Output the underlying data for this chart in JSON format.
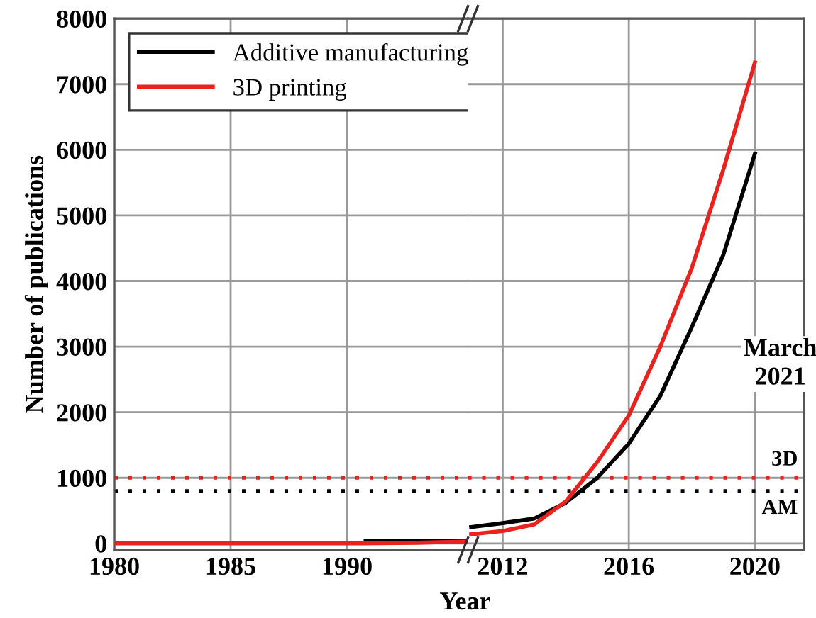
{
  "chart_data": [
    {
      "type": "line",
      "ylabel": "Number of publications",
      "xlabel": "Year",
      "xlim": [
        1980,
        1995.2
      ],
      "xticks": [
        1980,
        1985,
        1990
      ],
      "ylim": [
        -100,
        8000
      ],
      "yticks": [
        0,
        1000,
        2000,
        3000,
        4000,
        5000,
        6000,
        7000,
        8000
      ],
      "grid": true,
      "legend": "top left",
      "line_style": "solid",
      "marker": "none",
      "series": [
        {
          "name": "Additive manufacturing",
          "color": "#000000",
          "x": [
            1990.8,
            1995.2
          ],
          "values": [
            40,
            40
          ]
        },
        {
          "name": "3D printing",
          "color": "#e8231f",
          "x": [
            1980,
            1990,
            1993,
            1995.2
          ],
          "values": [
            0,
            0,
            10,
            30
          ]
        }
      ],
      "ref_lines": [
        {
          "axis": "y",
          "value": 1000,
          "color": "#e8231f",
          "line_style": "dotted"
        },
        {
          "axis": "y",
          "value": 800,
          "color": "#000000",
          "line_style": "dotted"
        }
      ]
    },
    {
      "type": "line",
      "xlim": [
        2010.9,
        2021.55
      ],
      "xticks": [
        2012,
        2016,
        2020
      ],
      "ylim": [
        -100,
        8000
      ],
      "yticks": [
        0,
        1000,
        2000,
        3000,
        4000,
        5000,
        6000,
        7000,
        8000
      ],
      "tick_labels": "x",
      "grid": true,
      "line_style": "solid",
      "marker": "none",
      "series": [
        {
          "color": "#000000",
          "x": [
            2011,
            2012,
            2013,
            2014,
            2015,
            2016,
            2017,
            2018,
            2019,
            2020
          ],
          "values": [
            250,
            310,
            380,
            620,
            1000,
            1520,
            2250,
            3300,
            4400,
            5940
          ]
        },
        {
          "color": "#e8231f",
          "x": [
            2011,
            2012,
            2013,
            2014,
            2015,
            2016,
            2017,
            2018,
            2019,
            2020
          ],
          "values": [
            140,
            190,
            290,
            640,
            1240,
            1950,
            3000,
            4200,
            5700,
            7330
          ]
        }
      ],
      "ref_lines": [
        {
          "axis": "y",
          "value": 1000,
          "color": "#e8231f",
          "line_style": "dotted",
          "label": "3D"
        },
        {
          "axis": "y",
          "value": 800,
          "color": "#000000",
          "line_style": "dotted",
          "label": "AM"
        }
      ],
      "annotations": [
        "March\n2021"
      ]
    }
  ]
}
